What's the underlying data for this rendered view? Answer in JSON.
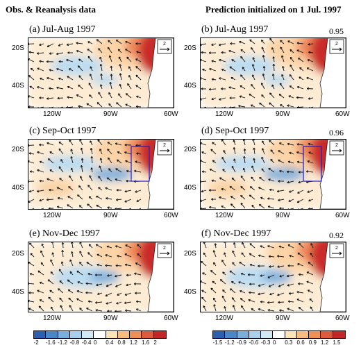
{
  "headers": {
    "left": "Obs. & Reanalysis data",
    "right": "Prediction initialized on 1 Jul. 1997"
  },
  "panels": [
    {
      "title": "(a) Jul-Aug 1997",
      "corr": "",
      "box": false
    },
    {
      "title": "(b) Jul-Aug 1997",
      "corr": "0.95",
      "box": false
    },
    {
      "title": "(c) Sep-Oct 1997",
      "corr": "",
      "box": true
    },
    {
      "title": "(d) Sep-Oct 1997",
      "corr": "0.96",
      "box": true
    },
    {
      "title": "(e) Nov-Dec 1997",
      "corr": "",
      "box": false
    },
    {
      "title": "(f) Nov-Dec 1997",
      "corr": "0.92",
      "box": false
    }
  ],
  "axes": {
    "lat_labels": [
      "20S",
      "40S"
    ],
    "lon_labels": [
      "120W",
      "90W",
      "60W"
    ]
  },
  "reference_vector": "2",
  "colorbars": {
    "left": [
      "-2",
      "-1.6",
      "-1.2",
      "-0.8",
      "-0.4",
      "0",
      "0.4",
      "0.8",
      "1.2",
      "1.6",
      "2"
    ],
    "right": [
      "-1.5",
      "-1.2",
      "-0.9",
      "-0.6",
      "-0.3",
      "0",
      "0.3",
      "0.6",
      "0.9",
      "1.2",
      "1.5"
    ],
    "colors": [
      "#2c5fb0",
      "#4a86c8",
      "#7aaedb",
      "#a9d0ec",
      "#d2e8f5",
      "#ffffff",
      "#fce3b8",
      "#f7bd80",
      "#ee9058",
      "#dd5a3c",
      "#c2252a"
    ]
  },
  "colors": {
    "warm_strong": "#c92a2a",
    "warm_mid": "#ef8a5a",
    "warm_light": "#fbd3a6",
    "cool_light": "#bcdcf0",
    "cool_mid": "#7fb1dc",
    "box": "#1c1ccc"
  }
}
